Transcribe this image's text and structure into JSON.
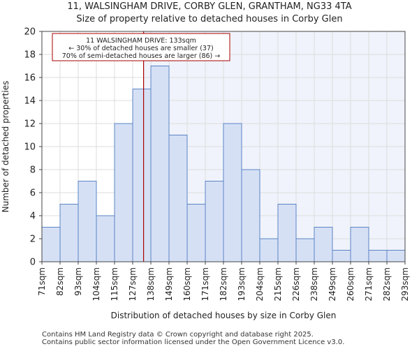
{
  "chart_data": {
    "type": "bar",
    "title": "11, WALSINGHAM DRIVE, CORBY GLEN, GRANTHAM, NG33 4TA",
    "subtitle": "Size of property relative to detached houses in Corby Glen",
    "xlabel": "Distribution of detached houses by size in Corby Glen",
    "ylabel": "Number of detached properties",
    "x_tick_labels": [
      "71sqm",
      "82sqm",
      "93sqm",
      "104sqm",
      "115sqm",
      "127sqm",
      "138sqm",
      "149sqm",
      "160sqm",
      "171sqm",
      "182sqm",
      "193sqm",
      "204sqm",
      "215sqm",
      "226sqm",
      "238sqm",
      "249sqm",
      "260sqm",
      "271sqm",
      "282sqm",
      "293sqm"
    ],
    "values": [
      3,
      5,
      7,
      4,
      12,
      15,
      17,
      11,
      5,
      7,
      12,
      8,
      2,
      5,
      2,
      3,
      1,
      3,
      1,
      1
    ],
    "y_ticks": [
      0,
      2,
      4,
      6,
      8,
      10,
      12,
      14,
      16,
      18,
      20
    ],
    "ylim": [
      0,
      20
    ],
    "grid": true,
    "bar_color": "#d6e0f5",
    "bar_edge_color": "#5b84c4",
    "highlight_bg": "#f0f3fb",
    "marker": {
      "bin_position": 5.6,
      "color": "#aa0000",
      "label": "11 WALSINGHAM DRIVE: 133sqm",
      "line2": "← 30% of detached houses are smaller (37)",
      "line3": "70% of semi-detached houses are larger (86) →"
    }
  },
  "footer": {
    "line1": "Contains HM Land Registry data © Crown copyright and database right 2025.",
    "line2": "Contains public sector information licensed under the Open Government Licence v3.0."
  }
}
